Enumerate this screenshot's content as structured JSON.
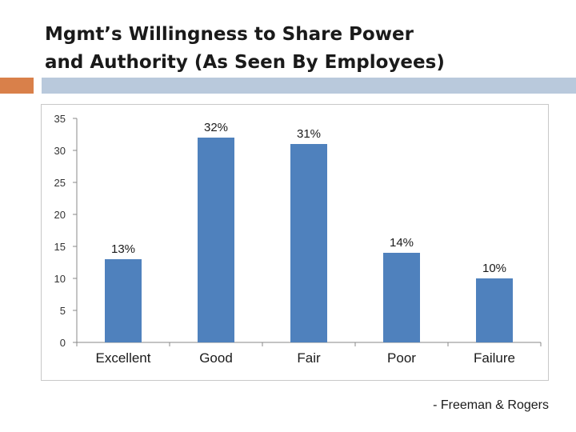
{
  "slide": {
    "title_line1": "Mgmt’s Willingness to Share Power",
    "title_line2": "and Authority (As Seen By Employees)",
    "citation": "- Freeman & Rogers",
    "accent_color": "#d9804a",
    "band_color": "#b9c9dc"
  },
  "chart_data": {
    "type": "bar",
    "title": "",
    "xlabel": "",
    "ylabel": "",
    "categories": [
      "Excellent",
      "Good",
      "Fair",
      "Poor",
      "Failure"
    ],
    "values": [
      13,
      32,
      31,
      14,
      10
    ],
    "data_labels": [
      "13%",
      "32%",
      "31%",
      "14%",
      "10%"
    ],
    "ylim": [
      0,
      35
    ],
    "yticks": [
      0,
      5,
      10,
      15,
      20,
      25,
      30,
      35
    ],
    "grid": false,
    "legend": "none",
    "bar_color": "#4f81bd"
  }
}
